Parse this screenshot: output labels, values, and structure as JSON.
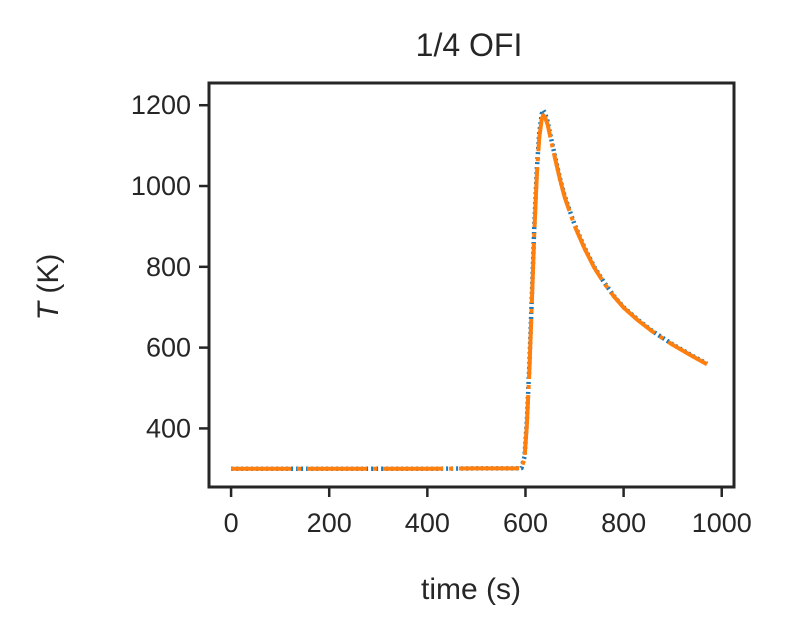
{
  "chart_data": {
    "type": "line",
    "title": "1/4 OFI",
    "xlabel": "time (s)",
    "ylabel_var": "T",
    "ylabel_unit": " (K)",
    "xlim": [
      -45,
      1025
    ],
    "ylim": [
      255,
      1255
    ],
    "xticks": [
      0,
      200,
      400,
      600,
      800,
      1000
    ],
    "yticks": [
      400,
      600,
      800,
      1000,
      1200
    ],
    "grid": false,
    "series": [
      {
        "color": "#1f77b4",
        "style": "dotted",
        "x": [
          0,
          100,
          200,
          300,
          400,
          500,
          580,
          592,
          598,
          603,
          608,
          613,
          618,
          623,
          628,
          633,
          636,
          640,
          645,
          650,
          660,
          670,
          680,
          700,
          720,
          740,
          760,
          780,
          800,
          830,
          860,
          900,
          940,
          970
        ],
        "y": [
          300,
          300,
          300,
          300,
          300,
          301,
          301,
          302,
          330,
          420,
          560,
          730,
          900,
          1040,
          1130,
          1178,
          1188,
          1180,
          1160,
          1130,
          1075,
          1020,
          975,
          905,
          848,
          800,
          762,
          728,
          700,
          668,
          640,
          608,
          580,
          560
        ]
      },
      {
        "color": "#ff7f0e",
        "style": "dashdot",
        "x": [
          0,
          100,
          200,
          300,
          400,
          500,
          580,
          592,
          598,
          603,
          608,
          613,
          618,
          623,
          628,
          633,
          636,
          640,
          645,
          650,
          660,
          670,
          680,
          700,
          720,
          740,
          760,
          780,
          800,
          830,
          860,
          900,
          940,
          970
        ],
        "y": [
          300,
          300,
          300,
          300,
          300,
          301,
          301,
          302,
          325,
          410,
          545,
          715,
          885,
          1025,
          1118,
          1165,
          1175,
          1170,
          1152,
          1125,
          1070,
          1018,
          972,
          902,
          846,
          798,
          760,
          727,
          699,
          667,
          639,
          607,
          579,
          559
        ]
      }
    ]
  }
}
